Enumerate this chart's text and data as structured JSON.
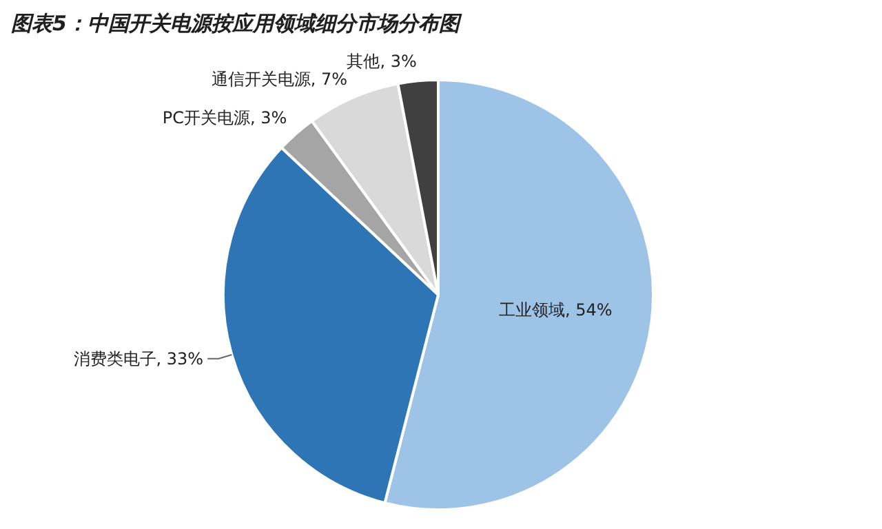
{
  "chart_data": {
    "type": "pie",
    "title": "图表5：中国开关电源按应用领域细分市场分布图",
    "categories": [
      "工业领域",
      "消费类电子",
      "PC开关电源",
      "通信开关电源",
      "其他"
    ],
    "values": [
      54,
      33,
      3,
      7,
      3
    ],
    "colors": [
      "#9dc3e6",
      "#2e75b6",
      "#a5a5a5",
      "#d9d9d9",
      "#404040"
    ],
    "value_labels": [
      ", 54%",
      ", 33%",
      ", 3%",
      ", 7%",
      ", 3%"
    ]
  }
}
